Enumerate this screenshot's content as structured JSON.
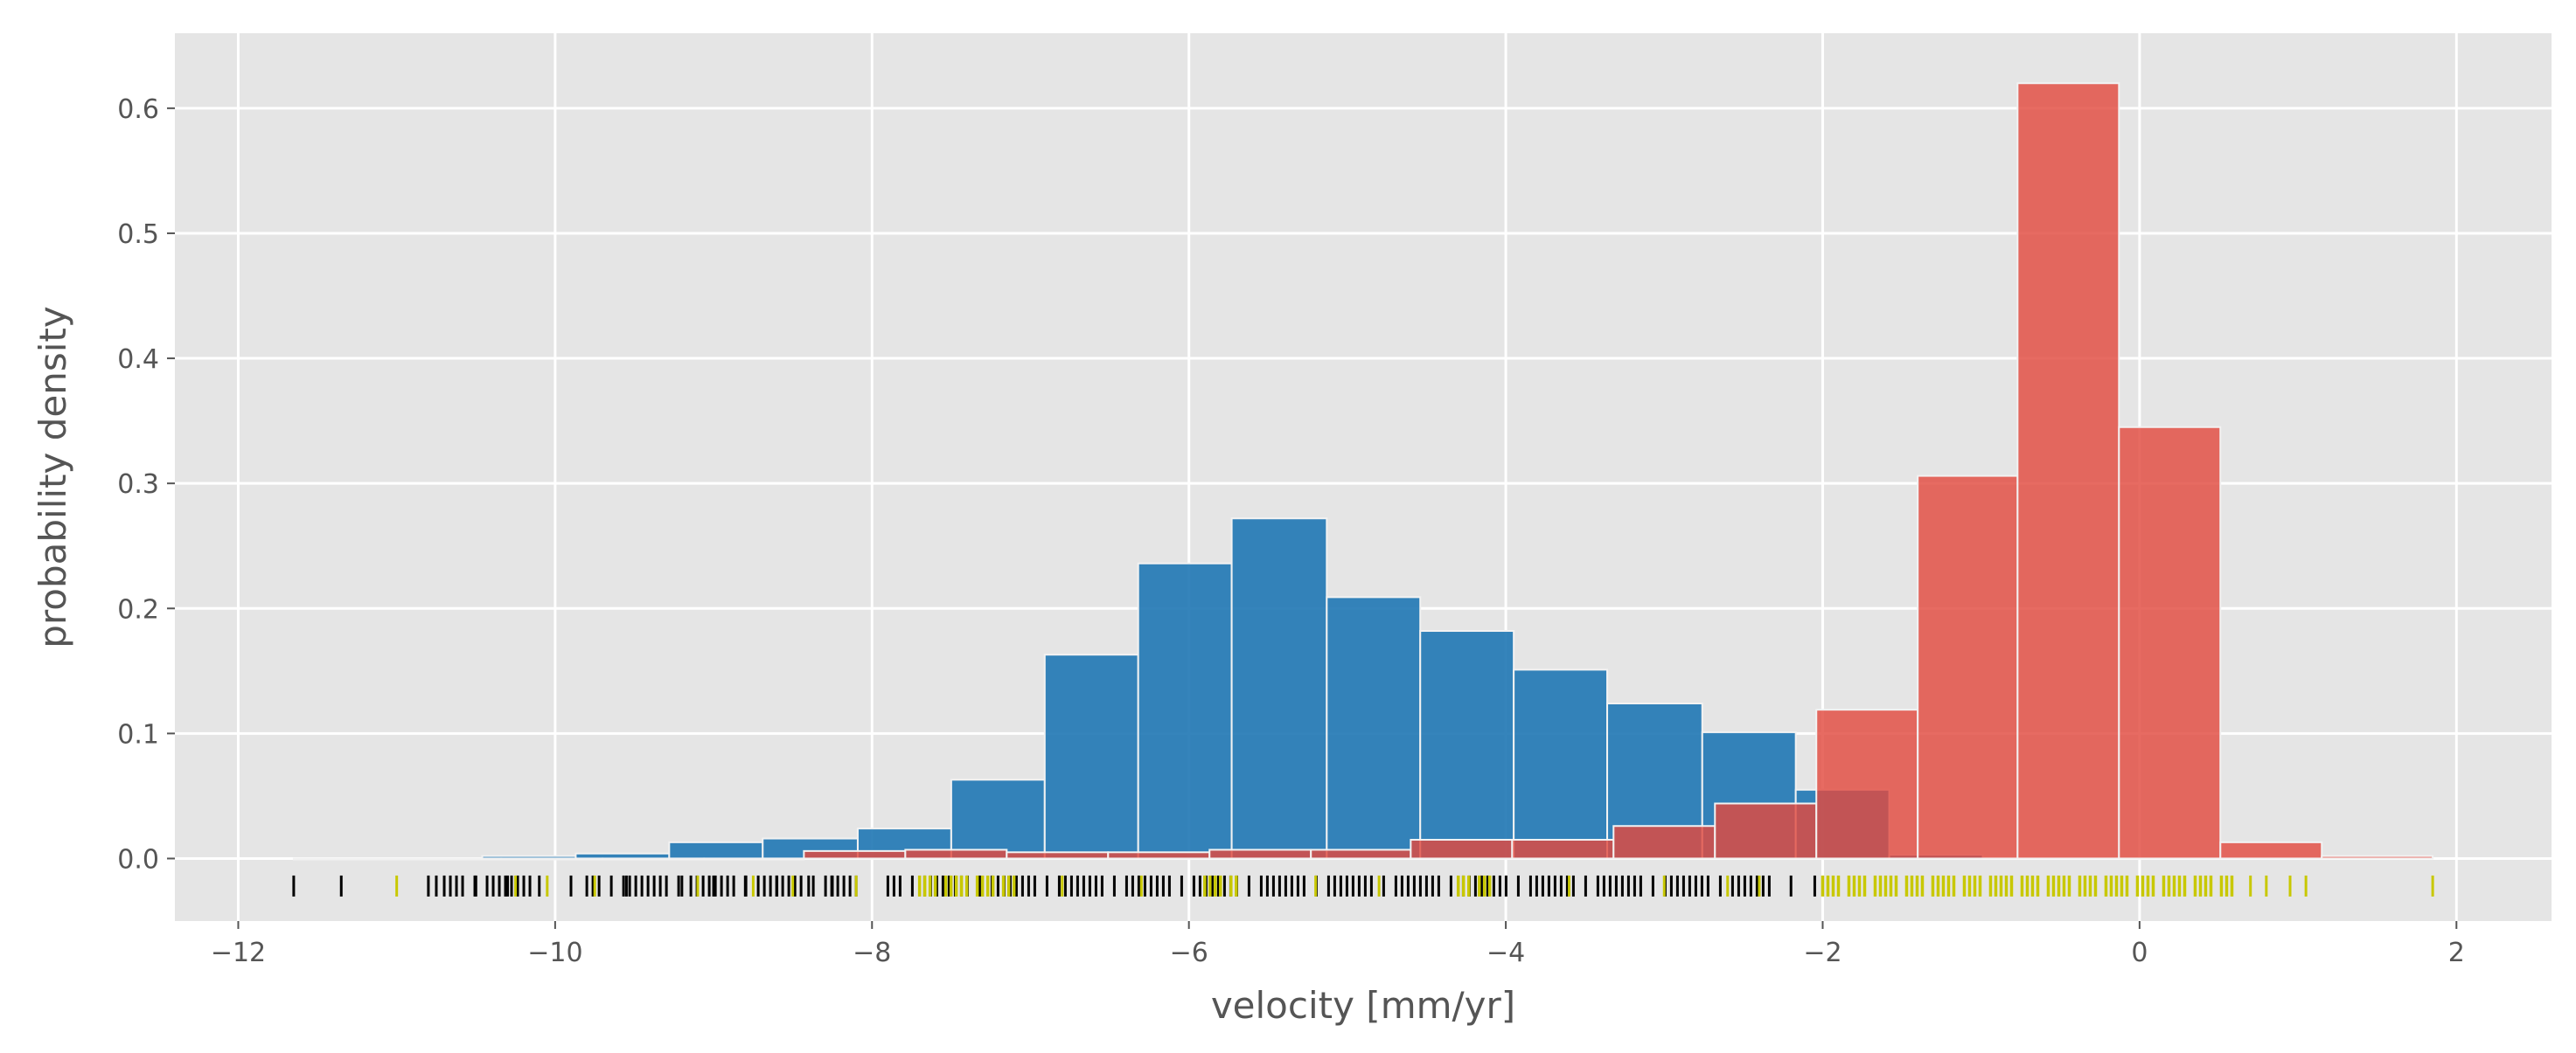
{
  "chart_data": {
    "type": "bar",
    "xlabel": "velocity  [mm/yr]",
    "ylabel": "probability density",
    "xlim": [
      -12.4,
      2.6
    ],
    "ylim": [
      -0.05,
      0.66
    ],
    "grid": true,
    "xticks": [
      -12,
      -10,
      -8,
      -6,
      -4,
      -2,
      0,
      2
    ],
    "xtick_labels": [
      "−12",
      "−10",
      "−8",
      "−6",
      "−4",
      "−2",
      "0",
      "2"
    ],
    "yticks": [
      0.0,
      0.1,
      0.2,
      0.3,
      0.4,
      0.5,
      0.6
    ],
    "ytick_labels": [
      "0.0",
      "0.1",
      "0.2",
      "0.3",
      "0.4",
      "0.5",
      "0.6"
    ],
    "series": [
      {
        "color": "#1f77b4",
        "bin_edges": [
          -11.65,
          -11.06,
          -10.46,
          -9.87,
          -9.28,
          -8.69,
          -8.09,
          -7.5,
          -6.91,
          -6.32,
          -5.73,
          -5.13,
          -4.54,
          -3.95,
          -3.36,
          -2.76,
          -2.17,
          -1.58,
          -0.99
        ],
        "values": [
          0.0,
          0.0,
          0.002,
          0.004,
          0.013,
          0.016,
          0.024,
          0.063,
          0.163,
          0.236,
          0.272,
          0.209,
          0.182,
          0.151,
          0.124,
          0.101,
          0.055,
          0.003
        ]
      },
      {
        "color": "#e24a3f",
        "bin_edges": [
          -10.98,
          -10.34,
          -9.7,
          -9.06,
          -8.43,
          -7.79,
          -7.15,
          -6.51,
          -5.87,
          -5.23,
          -4.6,
          -3.96,
          -3.32,
          -2.68,
          -2.04,
          -1.4,
          -0.77,
          -0.13,
          0.51,
          1.15,
          1.85
        ],
        "values": [
          0.0,
          0.0,
          0.0,
          0.0,
          0.006,
          0.007,
          0.005,
          0.005,
          0.007,
          0.007,
          0.015,
          0.015,
          0.026,
          0.044,
          0.119,
          0.306,
          0.62,
          0.345,
          0.013,
          0.002
        ]
      }
    ],
    "rug": {
      "y": -0.022,
      "series": [
        {
          "color": "#000000",
          "ranges": [
            [
              -7.9,
              -2.3
            ],
            [
              -9.8,
              -8.1
            ],
            [
              -10.7,
              -10.1
            ]
          ],
          "points": [
            -11.65,
            -11.35,
            -10.8,
            -10.75,
            -10.5,
            -10.3,
            -10.1,
            -9.9,
            -9.55,
            -9.2,
            -9.0,
            -8.8,
            -8.6,
            -8.4,
            -8.25,
            -2.2,
            -2.05
          ]
        },
        {
          "color": "#c8c800",
          "ranges": [
            [
              -2.0,
              0.6
            ],
            [
              -7.7,
              -7.1
            ],
            [
              -5.9,
              -5.7
            ],
            [
              -4.3,
              -4.1
            ]
          ],
          "points": [
            -11.0,
            -10.25,
            -10.05,
            -9.75,
            -9.1,
            -8.75,
            -8.5,
            -8.1,
            -6.8,
            -6.3,
            -5.2,
            -4.8,
            -3.6,
            -3.0,
            -2.6,
            -2.4,
            0.7,
            0.8,
            0.95,
            1.05,
            1.85
          ]
        }
      ]
    }
  }
}
